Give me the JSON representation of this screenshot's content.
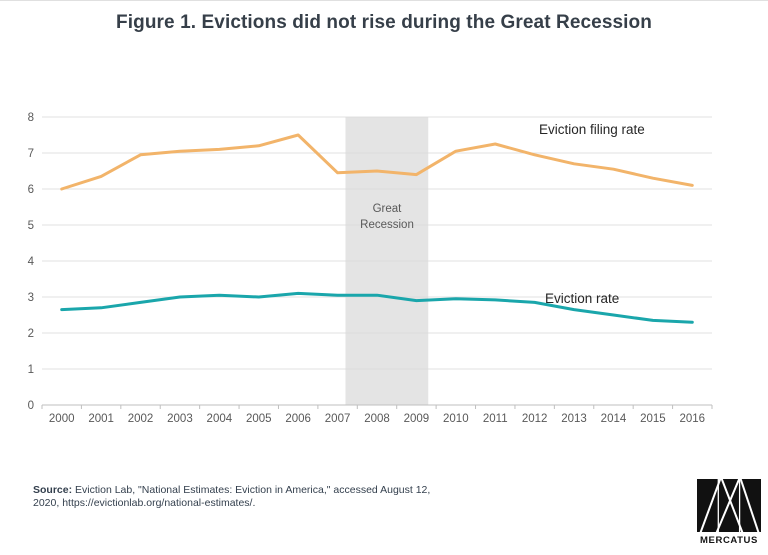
{
  "title": "Figure 1. Evictions did not rise during the Great Recession",
  "chart_data": {
    "type": "line",
    "x": [
      2000,
      2001,
      2002,
      2003,
      2004,
      2005,
      2006,
      2007,
      2008,
      2009,
      2010,
      2011,
      2012,
      2013,
      2014,
      2015,
      2016
    ],
    "series": [
      {
        "name": "Eviction filing rate",
        "color": "#F2B46A",
        "values": [
          6.0,
          6.35,
          6.95,
          7.05,
          7.1,
          7.2,
          7.5,
          6.45,
          6.5,
          6.4,
          7.05,
          7.25,
          6.95,
          6.7,
          6.55,
          6.3,
          6.1
        ]
      },
      {
        "name": "Eviction rate",
        "color": "#1AA6AB",
        "values": [
          2.65,
          2.7,
          2.85,
          3.0,
          3.05,
          3.0,
          3.1,
          3.05,
          3.05,
          2.9,
          2.95,
          2.92,
          2.85,
          2.65,
          2.5,
          2.35,
          2.3
        ]
      }
    ],
    "ylim": [
      0,
      8
    ],
    "y_ticks": [
      0,
      1,
      2,
      3,
      4,
      5,
      6,
      7,
      8
    ],
    "grid": true,
    "legend": "inline-labels",
    "recession_band": {
      "from_year": 2007.2,
      "to_year": 2009.3,
      "color": "#E4E4E4",
      "label_line1": "Great",
      "label_line2": "Recession"
    },
    "colors": {
      "gridline": "#D9D9D9",
      "axis": "#BFBFBF",
      "tick_label": "#595959"
    }
  },
  "source": {
    "prefix": "Source:",
    "line1": "Eviction Lab, \"National Estimates: Eviction in America,\" accessed August 12,",
    "line2": "2020, https://evictionlab.org/national-estimates/."
  },
  "logo": {
    "text": "MERCATUS"
  }
}
